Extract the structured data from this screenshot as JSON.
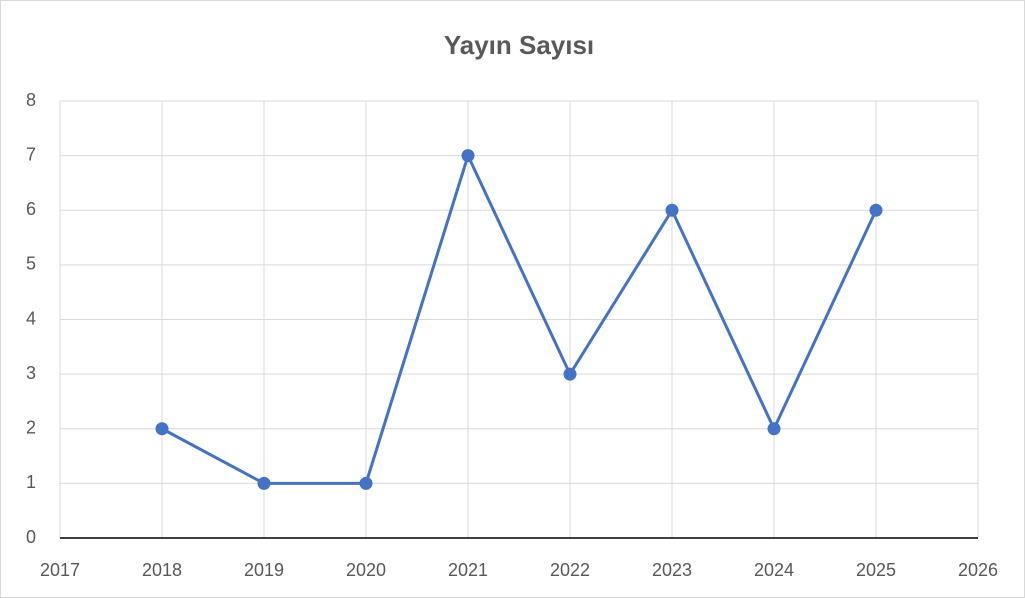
{
  "chart_data": {
    "type": "line",
    "title": "Yayın Sayısı",
    "x": [
      2018,
      2019,
      2020,
      2021,
      2022,
      2023,
      2024,
      2025
    ],
    "series": [
      {
        "name": "Yayın Sayısı",
        "color": "#4472c4",
        "values": [
          2,
          1,
          1,
          7,
          3,
          6,
          2,
          6
        ]
      }
    ],
    "xlim": [
      2017,
      2026
    ],
    "xticks": [
      2017,
      2018,
      2019,
      2020,
      2021,
      2022,
      2023,
      2024,
      2025,
      2026
    ],
    "ylim": [
      0,
      8
    ],
    "yticks": [
      0,
      1,
      2,
      3,
      4,
      5,
      6,
      7,
      8
    ],
    "grid": true
  }
}
